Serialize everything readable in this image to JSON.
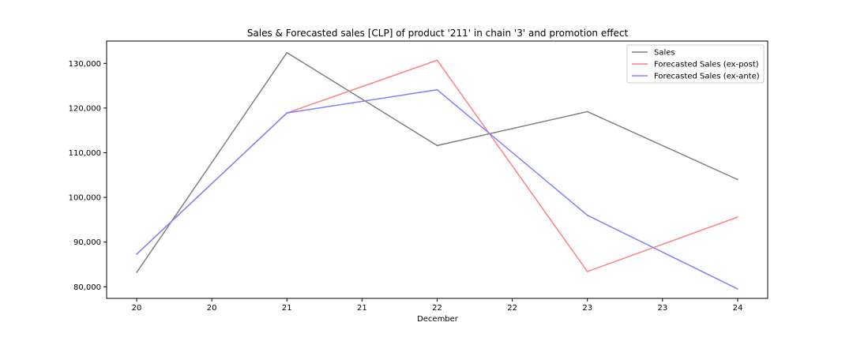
{
  "chart_data": {
    "type": "line",
    "title": "Sales & Forecasted sales [CLP] of product '211' in chain '3' and promotion effect",
    "xlabel": "December",
    "ylabel": "",
    "x": [
      20,
      21,
      22,
      23,
      24
    ],
    "x_tick_values": [
      20,
      20.5,
      21,
      21.5,
      22,
      22.5,
      23,
      23.5,
      24
    ],
    "x_tick_labels": [
      "20",
      "20",
      "21",
      "21",
      "22",
      "22",
      "23",
      "23",
      "24"
    ],
    "xlim": [
      19.8,
      24.2
    ],
    "y_ticks": [
      80000,
      90000,
      100000,
      110000,
      120000,
      130000
    ],
    "y_tick_labels": [
      "80,000",
      "90,000",
      "100,000",
      "110,000",
      "120,000",
      "130,000"
    ],
    "ylim": [
      77400,
      135000
    ],
    "grid": false,
    "legend_position": "top-right",
    "series": [
      {
        "name": "Sales",
        "color": "#808080",
        "values": [
          83200,
          132400,
          111600,
          119200,
          104000
        ]
      },
      {
        "name": "Forecasted Sales (ex-post)",
        "color": "#ff8080",
        "values": [
          87300,
          118900,
          130700,
          83400,
          95600
        ]
      },
      {
        "name": "Forecasted Sales (ex-ante)",
        "color": "#8080ff",
        "values": [
          87300,
          118900,
          124100,
          96000,
          79500
        ]
      }
    ]
  }
}
